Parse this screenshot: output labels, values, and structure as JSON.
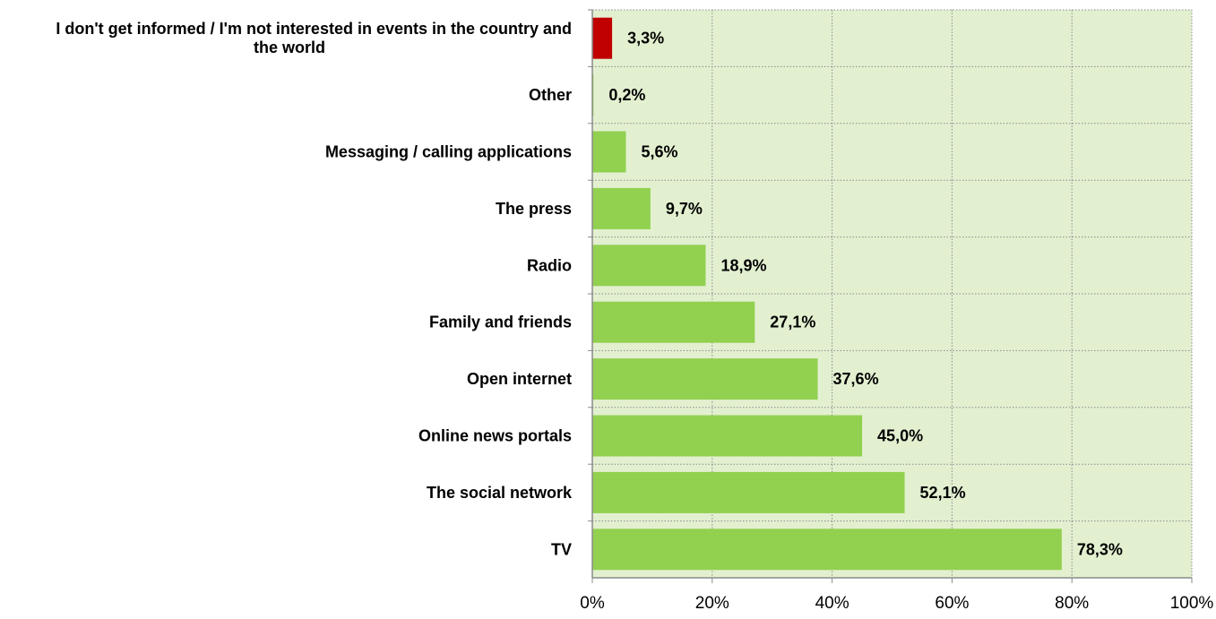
{
  "chart_data": {
    "type": "bar",
    "orientation": "horizontal",
    "categories": [
      [
        "I don't get informed / I'm not interested in events in the country and",
        "the world"
      ],
      [
        "Other"
      ],
      [
        "Messaging / calling applications"
      ],
      [
        "The press"
      ],
      [
        "Radio"
      ],
      [
        "Family and friends"
      ],
      [
        "Open internet"
      ],
      [
        "Online news portals"
      ],
      [
        "The social network"
      ],
      [
        "TV"
      ]
    ],
    "values": [
      3.3,
      0.2,
      5.6,
      9.7,
      18.9,
      27.1,
      37.6,
      45.0,
      52.1,
      78.3
    ],
    "value_labels": [
      "3,3%",
      "0,2%",
      "5,6%",
      "9,7%",
      "18,9%",
      "27,1%",
      "37,6%",
      "45,0%",
      "52,1%",
      "78,3%"
    ],
    "bar_colors": [
      "#c00000",
      "#92d050",
      "#92d050",
      "#92d050",
      "#92d050",
      "#92d050",
      "#92d050",
      "#92d050",
      "#92d050",
      "#92d050"
    ],
    "xlim": [
      0,
      100
    ],
    "x_ticks": [
      "0%",
      "20%",
      "40%",
      "60%",
      "80%",
      "100%"
    ],
    "grid": true,
    "plot_background": "#e2f0d0",
    "grid_color": "#8a8a8a",
    "legend": "none",
    "title": "",
    "xlabel": "",
    "ylabel": ""
  }
}
